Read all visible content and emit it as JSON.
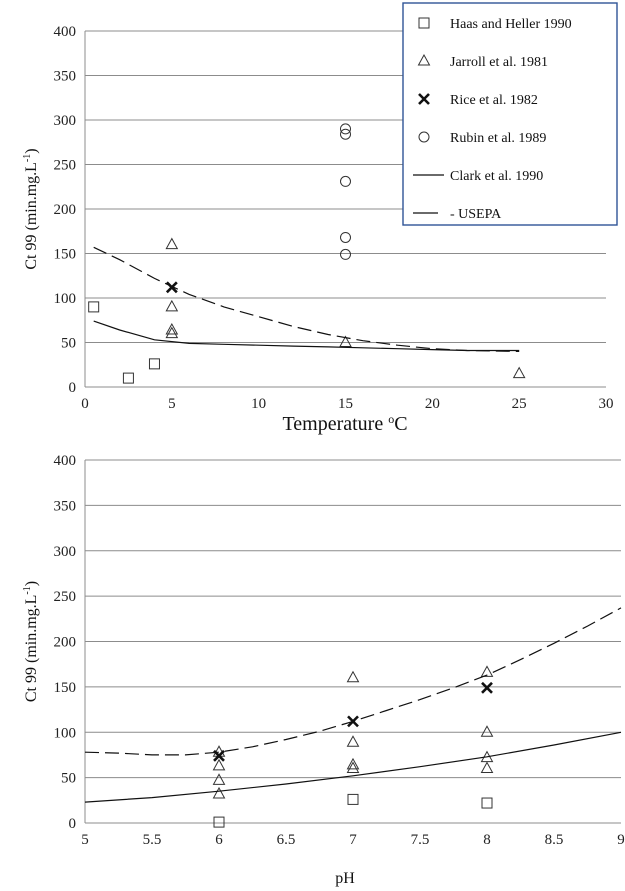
{
  "legend": {
    "position": "top-right",
    "entries": [
      {
        "key": "haas",
        "label": "Haas and Heller 1990",
        "marker": "square"
      },
      {
        "key": "jarroll",
        "label": "Jarroll et al. 1981",
        "marker": "triangle"
      },
      {
        "key": "rice",
        "label": "Rice et al. 1982",
        "marker": "cross"
      },
      {
        "key": "rubin",
        "label": "Rubin et al. 1989",
        "marker": "circle"
      },
      {
        "key": "clark",
        "label": "Clark et al. 1990",
        "marker": "solid-line"
      },
      {
        "key": "usepa",
        "label": "- USEPA",
        "marker": "dashed-line"
      }
    ],
    "border_color": "#2f5496"
  },
  "chart_data": [
    {
      "type": "scatter",
      "xlabel": "Temperature",
      "xlabel_superscript": "o",
      "xlabel_unit": "C",
      "ylabel": "Ct 99 (min.mg.L",
      "ylabel_superscript": "-1",
      "ylabel_close": ")",
      "xlim": [
        0,
        30
      ],
      "ylim": [
        0,
        400
      ],
      "xticks": [
        0,
        5,
        10,
        15,
        20,
        25,
        30
      ],
      "yticks": [
        0,
        50,
        100,
        150,
        200,
        250,
        300,
        350,
        400
      ],
      "grid": "horizontal",
      "series": [
        {
          "key": "haas",
          "marker": "square",
          "points": [
            [
              0.5,
              90
            ],
            [
              2.5,
              10
            ],
            [
              4,
              26
            ]
          ]
        },
        {
          "key": "jarroll",
          "marker": "triangle",
          "points": [
            [
              5,
              160
            ],
            [
              5,
              90
            ],
            [
              5,
              64
            ],
            [
              5,
              60
            ],
            [
              15,
              50
            ],
            [
              25,
              15
            ]
          ]
        },
        {
          "key": "rice",
          "marker": "cross",
          "points": [
            [
              5,
              112
            ]
          ]
        },
        {
          "key": "rubin",
          "marker": "circle",
          "points": [
            [
              15,
              290
            ],
            [
              15,
              284
            ],
            [
              15,
              231
            ],
            [
              15,
              168
            ],
            [
              15,
              149
            ]
          ]
        },
        {
          "key": "clark",
          "style": "solid",
          "points": [
            [
              0.5,
              74
            ],
            [
              2,
              64
            ],
            [
              4,
              53
            ],
            [
              6,
              49
            ],
            [
              8,
              48
            ],
            [
              10,
              47
            ],
            [
              12,
              46
            ],
            [
              14,
              45
            ],
            [
              16,
              44
            ],
            [
              18,
              43
            ],
            [
              20,
              42
            ],
            [
              22,
              41
            ],
            [
              25,
              41
            ]
          ]
        },
        {
          "key": "usepa",
          "style": "dashed",
          "points": [
            [
              0.5,
              157
            ],
            [
              2,
              143
            ],
            [
              4,
              122
            ],
            [
              6,
              104
            ],
            [
              8,
              90
            ],
            [
              10,
              79
            ],
            [
              12,
              68
            ],
            [
              14,
              59
            ],
            [
              16,
              52
            ],
            [
              18,
              47
            ],
            [
              20,
              43
            ],
            [
              22,
              41
            ],
            [
              25,
              40
            ]
          ]
        }
      ]
    },
    {
      "type": "scatter",
      "xlabel": "pH",
      "ylabel": "Ct 99 (min.mg.L",
      "ylabel_superscript": "-1",
      "ylabel_close": ")",
      "xlim": [
        5,
        9
      ],
      "ylim": [
        0,
        400
      ],
      "xticks": [
        5,
        5.5,
        6,
        6.5,
        7,
        7.5,
        8,
        8.5,
        9
      ],
      "yticks": [
        0,
        50,
        100,
        150,
        200,
        250,
        300,
        350,
        400
      ],
      "grid": "horizontal",
      "series": [
        {
          "key": "haas",
          "marker": "square",
          "points": [
            [
              6,
              1
            ],
            [
              7,
              26
            ],
            [
              8,
              22
            ]
          ]
        },
        {
          "key": "jarroll",
          "marker": "triangle",
          "points": [
            [
              6,
              78
            ],
            [
              6,
              63
            ],
            [
              6,
              47
            ],
            [
              6,
              32
            ],
            [
              7,
              160
            ],
            [
              7,
              89
            ],
            [
              7,
              64
            ],
            [
              7,
              60
            ],
            [
              8,
              166
            ],
            [
              8,
              100
            ],
            [
              8,
              72
            ],
            [
              8,
              60
            ]
          ]
        },
        {
          "key": "rice",
          "marker": "cross",
          "points": [
            [
              6,
              74
            ],
            [
              7,
              112
            ],
            [
              8,
              149
            ]
          ]
        },
        {
          "key": "clark",
          "style": "solid",
          "points": [
            [
              5,
              23
            ],
            [
              5.5,
              28
            ],
            [
              6,
              35
            ],
            [
              6.5,
              43
            ],
            [
              7,
              52
            ],
            [
              7.5,
              62
            ],
            [
              8,
              73
            ],
            [
              8.5,
              86
            ],
            [
              9,
              100
            ]
          ]
        },
        {
          "key": "usepa",
          "style": "dashed",
          "points": [
            [
              5,
              78
            ],
            [
              5.25,
              77
            ],
            [
              5.5,
              75
            ],
            [
              5.75,
              75
            ],
            [
              6,
              78
            ],
            [
              6.25,
              84
            ],
            [
              6.5,
              92
            ],
            [
              6.75,
              101
            ],
            [
              7,
              112
            ],
            [
              7.25,
              124
            ],
            [
              7.5,
              136
            ],
            [
              7.75,
              149
            ],
            [
              8,
              163
            ],
            [
              8.25,
              180
            ],
            [
              8.5,
              198
            ],
            [
              8.75,
              217
            ],
            [
              9,
              237
            ]
          ]
        }
      ]
    }
  ]
}
